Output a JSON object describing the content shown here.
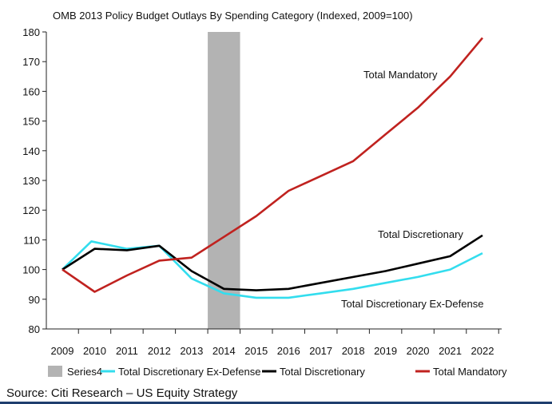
{
  "chart_data": {
    "type": "line",
    "title": "OMB 2013 Policy Budget Outlays By Spending Category (Indexed, 2009=100)",
    "x_categories": [
      "2009",
      "2010",
      "2011",
      "2012",
      "2013",
      "2014",
      "2015",
      "2016",
      "2017",
      "2018",
      "2019",
      "2020",
      "2021",
      "2022"
    ],
    "ylim": [
      80,
      180
    ],
    "yticks": [
      80,
      90,
      100,
      110,
      120,
      130,
      140,
      150,
      160,
      170,
      180
    ],
    "shaded_region": {
      "legend": "Series4",
      "x_start": 2013.5,
      "x_end": 2014.5,
      "color": "#b3b3b3"
    },
    "series": [
      {
        "name": "Total Discretionary Ex-Defense",
        "color": "#33ddee",
        "points": [
          [
            2009,
            100
          ],
          [
            2009.9,
            109.5
          ],
          [
            2011,
            107
          ],
          [
            2012,
            108
          ],
          [
            2013,
            97
          ],
          [
            2014,
            92
          ],
          [
            2015,
            90.5
          ],
          [
            2016,
            90.5
          ],
          [
            2017,
            92
          ],
          [
            2018,
            93.5
          ],
          [
            2019,
            95.5
          ],
          [
            2020,
            97.5
          ],
          [
            2021,
            100
          ],
          [
            2022,
            105.5
          ]
        ]
      },
      {
        "name": "Total Discretionary",
        "color": "#000000",
        "points": [
          [
            2009,
            100
          ],
          [
            2010,
            107
          ],
          [
            2011,
            106.5
          ],
          [
            2012,
            108
          ],
          [
            2013,
            99.5
          ],
          [
            2014,
            93.5
          ],
          [
            2015,
            93
          ],
          [
            2016,
            93.5
          ],
          [
            2017,
            95.5
          ],
          [
            2018,
            97.5
          ],
          [
            2019,
            99.5
          ],
          [
            2020,
            102
          ],
          [
            2021,
            104.5
          ],
          [
            2022,
            111.5
          ]
        ]
      },
      {
        "name": "Total Mandatory",
        "color": "#c0221f",
        "points": [
          [
            2009,
            100
          ],
          [
            2010,
            92.5
          ],
          [
            2011,
            98
          ],
          [
            2012,
            103
          ],
          [
            2013,
            104
          ],
          [
            2014,
            111
          ],
          [
            2015,
            118
          ],
          [
            2016,
            126.5
          ],
          [
            2017,
            131.5
          ],
          [
            2018,
            136.5
          ],
          [
            2019,
            145.5
          ],
          [
            2020,
            154.5
          ],
          [
            2021,
            165
          ],
          [
            2022,
            178
          ]
        ]
      }
    ],
    "annotations": [
      {
        "text": "Total Mandatory",
        "series": "Total Mandatory"
      },
      {
        "text": "Total Discretionary",
        "series": "Total Discretionary"
      },
      {
        "text": "Total Discretionary Ex-Defense",
        "series": "Total Discretionary Ex-Defense"
      }
    ],
    "legend": {
      "placement": "bottom",
      "entries": [
        "Series4",
        "Total Discretionary Ex-Defense",
        "Total Discretionary",
        "Total Mandatory"
      ]
    }
  },
  "source": "Source: Citi Research – US Equity Strategy"
}
